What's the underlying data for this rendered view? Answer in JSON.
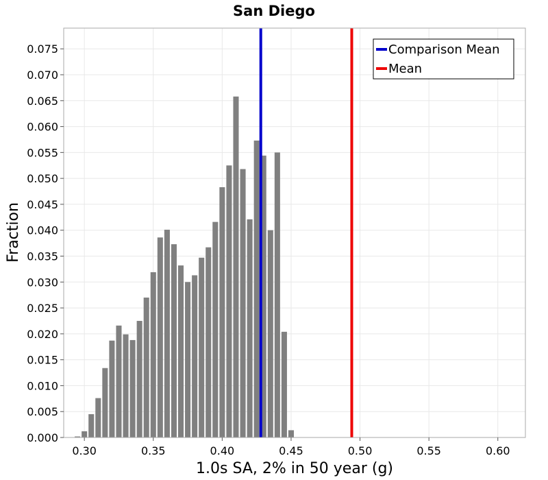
{
  "chart_data": {
    "type": "bar",
    "title": "San Diego",
    "xlabel": "1.0s SA, 2% in 50 year (g)",
    "ylabel": "Fraction",
    "xlim": [
      0.285,
      0.62
    ],
    "ylim": [
      0.0,
      0.079
    ],
    "x_ticks": [
      "0.30",
      "0.35",
      "0.40",
      "0.45",
      "0.50",
      "0.55",
      "0.60"
    ],
    "y_ticks": [
      "0.000",
      "0.005",
      "0.010",
      "0.015",
      "0.020",
      "0.025",
      "0.030",
      "0.035",
      "0.040",
      "0.045",
      "0.050",
      "0.055",
      "0.060",
      "0.065",
      "0.070",
      "0.075"
    ],
    "grid": true,
    "legend_position": "top-right",
    "bin_width": 0.005,
    "bars": {
      "x": [
        0.295,
        0.3,
        0.305,
        0.31,
        0.315,
        0.32,
        0.325,
        0.33,
        0.335,
        0.34,
        0.345,
        0.35,
        0.355,
        0.36,
        0.365,
        0.37,
        0.375,
        0.38,
        0.385,
        0.39,
        0.395,
        0.4,
        0.405,
        0.41,
        0.415,
        0.42,
        0.425,
        0.43,
        0.435,
        0.44,
        0.445,
        0.45,
        0.455,
        0.46,
        0.465,
        0.47
      ],
      "values": [
        0.0002,
        0.0012,
        0.0045,
        0.0076,
        0.0134,
        0.0187,
        0.0216,
        0.0199,
        0.0188,
        0.0225,
        0.027,
        0.0319,
        0.0386,
        0.0401,
        0.0373,
        0.0332,
        0.03,
        0.0313,
        0.0347,
        0.0367,
        0.0416,
        0.0483,
        0.0525,
        0.0658,
        0.0518,
        0.0421,
        0.0573,
        0.0544,
        0.04,
        0.055,
        0.0204,
        0.0014,
        0.0,
        0.0,
        0.0,
        0.0
      ],
      "color": "#808080"
    },
    "series": [
      {
        "name": "Comparison Mean",
        "x": 0.428,
        "color": "#0000cc"
      },
      {
        "name": "Mean",
        "x": 0.494,
        "color": "#ee0000"
      }
    ]
  }
}
